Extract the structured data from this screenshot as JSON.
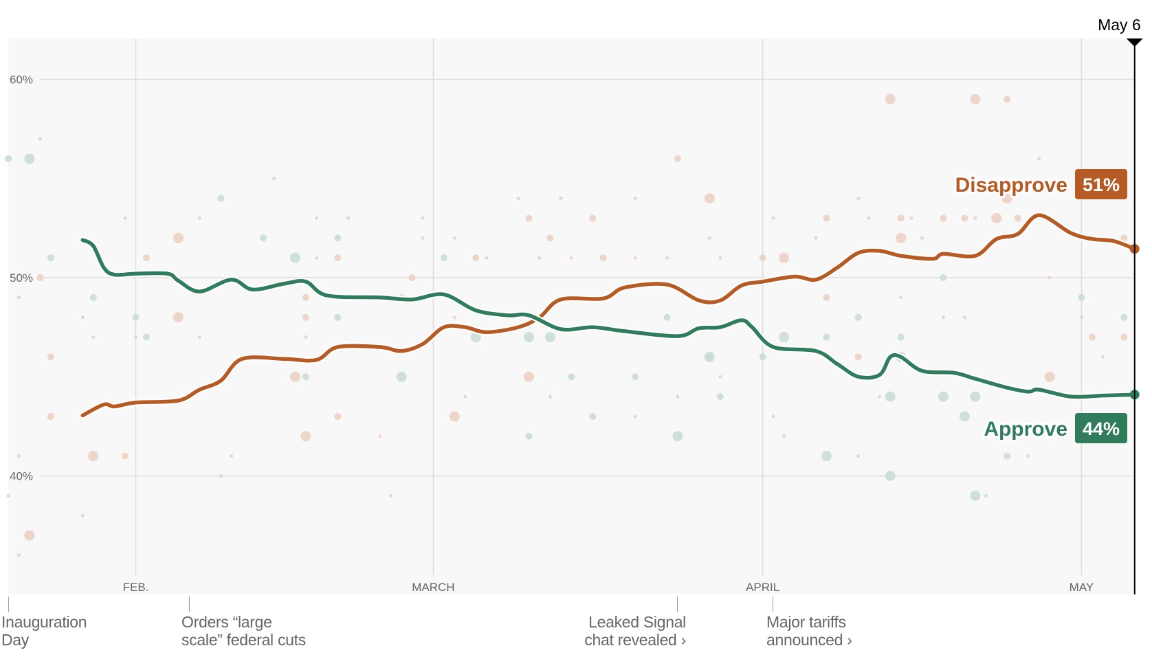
{
  "chart_data": {
    "type": "line",
    "title": "",
    "xlabel": "",
    "ylabel": "",
    "ylim": [
      34,
      62
    ],
    "xlim": [
      "Jan 20",
      "May 6"
    ],
    "grid": true,
    "y_ticks": [
      {
        "value": 60,
        "label": "60%"
      },
      {
        "value": 50,
        "label": "50%"
      },
      {
        "value": 40,
        "label": "40%"
      }
    ],
    "x_ticks": [
      {
        "date": "Feb 1",
        "label": "FEB."
      },
      {
        "date": "Mar 1",
        "label": "MARCH"
      },
      {
        "date": "Apr 1",
        "label": "APRIL"
      },
      {
        "date": "May 1",
        "label": "MAY"
      }
    ],
    "current_marker": {
      "date": "May 6",
      "label": "May 6"
    },
    "colors": {
      "approve": "#2f7d5d",
      "disapprove": "#b65b24",
      "approve_poll": "#c9ddd3",
      "disapprove_poll": "#ecd0c3",
      "panel": "#f8f8f8",
      "grid": "#dddddd"
    },
    "series": [
      {
        "name": "Disapprove",
        "final_label": "51%",
        "key": "disapprove",
        "points": [
          [
            "Jan 27",
            43.05
          ],
          [
            "Jan 29",
            43.6
          ],
          [
            "Jan 30",
            43.5
          ],
          [
            "Feb 1",
            43.7
          ],
          [
            "Feb 5",
            43.8
          ],
          [
            "Feb 7",
            44.35
          ],
          [
            "Feb 9",
            44.8
          ],
          [
            "Feb 11",
            45.9
          ],
          [
            "Feb 15",
            45.9
          ],
          [
            "Feb 18",
            45.85
          ],
          [
            "Feb 20",
            46.5
          ],
          [
            "Feb 24",
            46.5
          ],
          [
            "Feb 26",
            46.3
          ],
          [
            "Feb 28",
            46.65
          ],
          [
            "Mar 2",
            47.5
          ],
          [
            "Mar 4",
            47.5
          ],
          [
            "Mar 6",
            47.25
          ],
          [
            "Mar 9",
            47.5
          ],
          [
            "Mar 11",
            48.0
          ],
          [
            "Mar 13",
            48.9
          ],
          [
            "Mar 17",
            48.95
          ],
          [
            "Mar 19",
            49.5
          ],
          [
            "Mar 23",
            49.65
          ],
          [
            "Mar 26",
            48.85
          ],
          [
            "Mar 28",
            48.85
          ],
          [
            "Mar 30",
            49.6
          ],
          [
            "Apr 1",
            49.8
          ],
          [
            "Apr 4",
            50.05
          ],
          [
            "Apr 6",
            49.9
          ],
          [
            "Apr 8",
            50.5
          ],
          [
            "Apr 10",
            51.25
          ],
          [
            "Apr 12",
            51.35
          ],
          [
            "Apr 14",
            51.1
          ],
          [
            "Apr 17",
            50.95
          ],
          [
            "Apr 18",
            51.2
          ],
          [
            "Apr 21",
            51.1
          ],
          [
            "Apr 23",
            51.95
          ],
          [
            "Apr 25",
            52.2
          ],
          [
            "Apr 27",
            53.15
          ],
          [
            "Apr 30",
            52.25
          ],
          [
            "May 2",
            51.95
          ],
          [
            "May 4",
            51.85
          ],
          [
            "May 6",
            51.45
          ]
        ],
        "polls": [
          [
            "Apr 13",
            59,
            3
          ],
          [
            "Apr 21",
            59,
            3
          ],
          [
            "Apr 24",
            59,
            2
          ],
          [
            "Mar 24",
            56,
            2
          ],
          [
            "Mar 27",
            54,
            3
          ],
          [
            "Apr 27",
            56,
            1
          ],
          [
            "Apr 24",
            54,
            3
          ],
          [
            "Mar 9",
            54,
            1
          ],
          [
            "Mar 20",
            54,
            1
          ],
          [
            "Apr 10",
            54,
            1
          ],
          [
            "Mar 10",
            53,
            2
          ],
          [
            "Mar 16",
            53,
            2
          ],
          [
            "Apr 2",
            53,
            1
          ],
          [
            "Apr 7",
            53,
            2
          ],
          [
            "Apr 11",
            53,
            1
          ],
          [
            "Apr 14",
            53,
            2
          ],
          [
            "Apr 15",
            53,
            1
          ],
          [
            "Apr 18",
            53,
            2
          ],
          [
            "Apr 20",
            53,
            2
          ],
          [
            "Apr 21",
            53,
            1
          ],
          [
            "Apr 23",
            53,
            3
          ],
          [
            "Apr 25",
            53,
            2
          ],
          [
            "Feb 18",
            53,
            1
          ],
          [
            "Feb 5",
            52,
            3
          ],
          [
            "Feb 28",
            52,
            1
          ],
          [
            "Mar 3",
            52,
            1
          ],
          [
            "Mar 12",
            52,
            2
          ],
          [
            "Apr 6",
            52,
            1
          ],
          [
            "Apr 14",
            52,
            3
          ],
          [
            "Apr 16",
            52,
            1
          ],
          [
            "May 5",
            52,
            2
          ],
          [
            "Feb 2",
            51,
            2
          ],
          [
            "Feb 18",
            51,
            1
          ],
          [
            "Feb 20",
            51,
            2
          ],
          [
            "Mar 5",
            51,
            2
          ],
          [
            "Mar 11",
            51,
            1
          ],
          [
            "Mar 14",
            51,
            1
          ],
          [
            "Mar 17",
            51,
            2
          ],
          [
            "Mar 20",
            51,
            1
          ],
          [
            "Mar 23",
            51,
            1
          ],
          [
            "Mar 28",
            51,
            1
          ],
          [
            "Apr 1",
            51,
            2
          ],
          [
            "Apr 3",
            51,
            3
          ],
          [
            "Jan 23",
            50,
            2
          ],
          [
            "Feb 27",
            50,
            2
          ],
          [
            "Apr 28",
            50,
            1
          ],
          [
            "Feb 17",
            49,
            2
          ],
          [
            "Feb 26",
            49,
            2
          ],
          [
            "Apr 7",
            49,
            2
          ],
          [
            "Apr 14",
            49,
            1
          ],
          [
            "Jan 27",
            48,
            1
          ],
          [
            "Feb 5",
            48,
            3
          ],
          [
            "Feb 17",
            48,
            2
          ],
          [
            "Mar 3",
            48,
            1
          ],
          [
            "Apr 18",
            48,
            1
          ],
          [
            "Apr 20",
            48,
            1
          ],
          [
            "May 1",
            48,
            1
          ],
          [
            "Jan 28",
            47,
            1
          ],
          [
            "Feb 1",
            47,
            1
          ],
          [
            "Feb 7",
            47,
            1
          ],
          [
            "Feb 17",
            47,
            1
          ],
          [
            "May 2",
            47,
            2
          ],
          [
            "May 5",
            47,
            2
          ],
          [
            "Jan 24",
            46,
            2
          ],
          [
            "Mar 27",
            46,
            2
          ],
          [
            "Apr 10",
            46,
            2
          ],
          [
            "Feb 16",
            45,
            3
          ],
          [
            "Mar 10",
            45,
            3
          ],
          [
            "Mar 28",
            45,
            1
          ],
          [
            "Apr 28",
            45,
            3
          ],
          [
            "Apr 12",
            44,
            1
          ],
          [
            "Jan 24",
            43,
            2
          ],
          [
            "Mar 3",
            43,
            3
          ],
          [
            "Feb 20",
            43,
            2
          ],
          [
            "Feb 17",
            42,
            3
          ],
          [
            "Feb 24",
            42,
            1
          ],
          [
            "Apr 3",
            42,
            1
          ],
          [
            "Apr 26",
            41,
            1
          ],
          [
            "Jan 28",
            41,
            3
          ],
          [
            "Jan 31",
            41,
            2
          ],
          [
            "Feb 10",
            41,
            1
          ],
          [
            "Jan 21",
            41,
            1
          ],
          [
            "Jan 20",
            39,
            1
          ],
          [
            "Feb 25",
            39,
            1
          ],
          [
            "Jan 22",
            37,
            3
          ],
          [
            "Jan 21",
            36,
            1
          ]
        ]
      },
      {
        "name": "Approve",
        "final_label": "44%",
        "key": "approve",
        "points": [
          [
            "Jan 27",
            51.9
          ],
          [
            "Jan 28",
            51.6
          ],
          [
            "Jan 29",
            50.5
          ],
          [
            "Jan 30",
            50.15
          ],
          [
            "Feb 1",
            50.2
          ],
          [
            "Feb 4",
            50.2
          ],
          [
            "Feb 5",
            49.85
          ],
          [
            "Feb 7",
            49.3
          ],
          [
            "Feb 10",
            49.9
          ],
          [
            "Feb 12",
            49.4
          ],
          [
            "Feb 15",
            49.7
          ],
          [
            "Feb 17",
            49.8
          ],
          [
            "Feb 19",
            49.1
          ],
          [
            "Feb 24",
            49.0
          ],
          [
            "Feb 27",
            48.9
          ],
          [
            "Mar 2",
            49.15
          ],
          [
            "Mar 5",
            48.35
          ],
          [
            "Mar 8",
            48.1
          ],
          [
            "Mar 10",
            48.1
          ],
          [
            "Mar 13",
            47.4
          ],
          [
            "Mar 16",
            47.5
          ],
          [
            "Mar 19",
            47.3
          ],
          [
            "Mar 24",
            47.05
          ],
          [
            "Mar 26",
            47.45
          ],
          [
            "Mar 28",
            47.5
          ],
          [
            "Mar 30",
            47.85
          ],
          [
            "Mar 31",
            47.5
          ],
          [
            "Apr 2",
            46.5
          ],
          [
            "Apr 6",
            46.3
          ],
          [
            "Apr 8",
            45.65
          ],
          [
            "Apr 10",
            45.0
          ],
          [
            "Apr 12",
            45.1
          ],
          [
            "Apr 13",
            46.0
          ],
          [
            "Apr 14",
            46.0
          ],
          [
            "Apr 16",
            45.3
          ],
          [
            "Apr 19",
            45.2
          ],
          [
            "Apr 21",
            44.9
          ],
          [
            "Apr 24",
            44.45
          ],
          [
            "Apr 26",
            44.25
          ],
          [
            "Apr 27",
            44.35
          ],
          [
            "Apr 30",
            44.0
          ],
          [
            "May 3",
            44.05
          ],
          [
            "May 6",
            44.1
          ]
        ],
        "polls": [
          [
            "Jan 22",
            56,
            3
          ],
          [
            "Jan 20",
            56,
            2
          ],
          [
            "Jan 23",
            57,
            1
          ],
          [
            "Feb 14",
            55,
            1
          ],
          [
            "Feb 9",
            54,
            2
          ],
          [
            "Jan 31",
            53,
            1
          ],
          [
            "Feb 7",
            53,
            1
          ],
          [
            "Feb 21",
            53,
            1
          ],
          [
            "Feb 28",
            53,
            1
          ],
          [
            "Mar 13",
            54,
            1
          ],
          [
            "Feb 13",
            52,
            2
          ],
          [
            "Feb 20",
            52,
            2
          ],
          [
            "Mar 27",
            52,
            1
          ],
          [
            "Jan 24",
            51,
            2
          ],
          [
            "Feb 16",
            51,
            3
          ],
          [
            "Mar 2",
            51,
            2
          ],
          [
            "Mar 6",
            51,
            1
          ],
          [
            "Apr 18",
            50,
            2
          ],
          [
            "Jan 28",
            49,
            2
          ],
          [
            "Jan 21",
            49,
            1
          ],
          [
            "Feb 20",
            48,
            2
          ],
          [
            "Feb 1",
            48,
            2
          ],
          [
            "Feb 2",
            47,
            2
          ],
          [
            "Mar 10",
            47,
            3
          ],
          [
            "Mar 12",
            47,
            3
          ],
          [
            "Mar 5",
            47,
            3
          ],
          [
            "Mar 23",
            48,
            2
          ],
          [
            "Apr 3",
            47,
            3
          ],
          [
            "Apr 7",
            47,
            2
          ],
          [
            "Apr 10",
            48,
            2
          ],
          [
            "Apr 14",
            47,
            2
          ],
          [
            "Apr 1",
            46,
            2
          ],
          [
            "Mar 27",
            46,
            3
          ],
          [
            "Apr 14",
            46,
            3
          ],
          [
            "May 1",
            49,
            2
          ],
          [
            "May 5",
            48,
            2
          ],
          [
            "May 3",
            46,
            1
          ],
          [
            "Feb 26",
            45,
            3
          ],
          [
            "Mar 14",
            45,
            2
          ],
          [
            "Mar 20",
            45,
            2
          ],
          [
            "Feb 17",
            45,
            2
          ],
          [
            "Mar 4",
            44,
            1
          ],
          [
            "Mar 12",
            44,
            1
          ],
          [
            "Mar 24",
            44,
            1
          ],
          [
            "Mar 28",
            44,
            2
          ],
          [
            "Apr 13",
            44,
            3
          ],
          [
            "Apr 18",
            44,
            3
          ],
          [
            "Apr 21",
            44,
            3
          ],
          [
            "Apr 29",
            44,
            1
          ],
          [
            "Mar 16",
            43,
            2
          ],
          [
            "Mar 20",
            43,
            1
          ],
          [
            "Apr 2",
            43,
            1
          ],
          [
            "Apr 20",
            43,
            3
          ],
          [
            "Mar 10",
            42,
            2
          ],
          [
            "Mar 24",
            42,
            3
          ],
          [
            "Apr 7",
            41,
            3
          ],
          [
            "Apr 10",
            41,
            1
          ],
          [
            "Apr 24",
            41,
            2
          ],
          [
            "Apr 13",
            40,
            3
          ],
          [
            "Apr 21",
            39,
            3
          ],
          [
            "Apr 22",
            39,
            1
          ],
          [
            "Feb 9",
            40,
            1
          ],
          [
            "Jan 27",
            38,
            1
          ]
        ]
      }
    ],
    "annotations": [
      {
        "lines": [
          "Inauguration",
          "Day"
        ]
      },
      {
        "lines": [
          "Orders “large",
          "scale” federal cuts"
        ]
      },
      {
        "lines": [
          "Leaked Signal",
          "chat revealed ›"
        ]
      },
      {
        "lines": [
          "Major tariffs",
          "announced ›"
        ]
      }
    ]
  }
}
